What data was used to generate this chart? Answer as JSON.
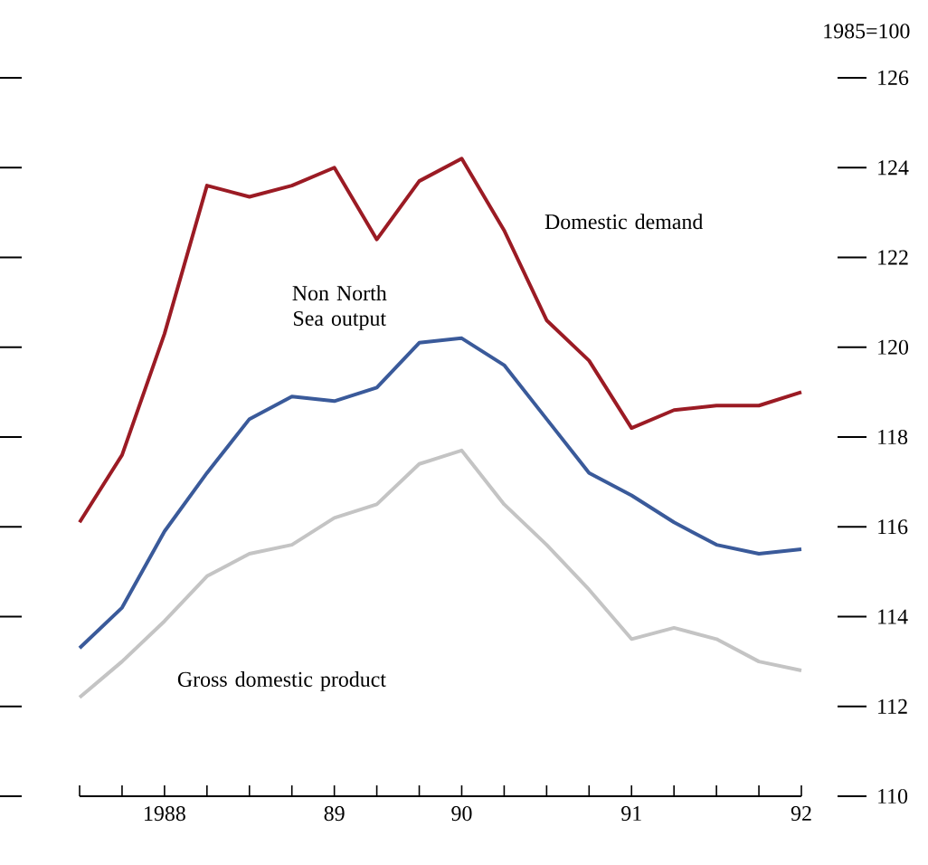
{
  "chart_data": {
    "type": "line",
    "ylabel": "1985=100",
    "categories": [
      null,
      null,
      "1988",
      null,
      null,
      null,
      "89",
      null,
      null,
      "90",
      null,
      null,
      null,
      "91",
      null,
      null,
      null,
      "92"
    ],
    "series": [
      {
        "name": "Domestic demand",
        "color": "#9b1b24",
        "values": [
          116.1,
          117.6,
          120.3,
          123.6,
          123.35,
          123.6,
          124.0,
          122.4,
          123.7,
          124.2,
          122.6,
          120.6,
          119.7,
          118.2,
          118.6,
          118.7,
          118.7,
          119.0
        ]
      },
      {
        "name": "Non North Sea output",
        "color": "#3a5a9a",
        "values": [
          113.3,
          114.2,
          115.9,
          117.2,
          118.4,
          118.9,
          118.8,
          119.1,
          120.1,
          120.2,
          119.6,
          118.4,
          117.2,
          116.7,
          116.1,
          115.6,
          115.4,
          115.5
        ]
      },
      {
        "name": "Gross domestic product",
        "color": "#c4c4c4",
        "values": [
          112.2,
          113.0,
          113.9,
          114.9,
          115.4,
          115.6,
          116.2,
          116.5,
          117.4,
          117.7,
          116.5,
          115.6,
          114.6,
          113.5,
          113.75,
          113.5,
          113.0,
          112.8
        ]
      }
    ],
    "ylim": [
      110,
      126
    ],
    "yticks": [
      110,
      112,
      114,
      116,
      118,
      120,
      122,
      124,
      126
    ],
    "grid": false,
    "marker": "none",
    "line_style": "solid"
  }
}
